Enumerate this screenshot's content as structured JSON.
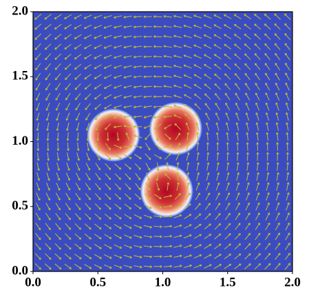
{
  "chart_data": {
    "type": "quiver",
    "xlim": [
      0,
      2
    ],
    "ylim": [
      0,
      2
    ],
    "xticks": [
      {
        "value": 0,
        "label": "0.0"
      },
      {
        "value": 0.5,
        "label": "0.5"
      },
      {
        "value": 1,
        "label": "1.0"
      },
      {
        "value": 1.5,
        "label": "1.5"
      },
      {
        "value": 2,
        "label": "2.0"
      }
    ],
    "yticks": [
      {
        "value": 0,
        "label": "0.0"
      },
      {
        "value": 0.5,
        "label": "0.5"
      },
      {
        "value": 1,
        "label": "1.0"
      },
      {
        "value": 1.5,
        "label": "1.5"
      },
      {
        "value": 2,
        "label": "2.0"
      }
    ],
    "background": "#3b4cc0",
    "arrow_color": "#b9b935",
    "vortices": [
      {
        "x": 0.62,
        "y": 1.05,
        "r": 0.16
      },
      {
        "x": 1.1,
        "y": 1.1,
        "r": 0.16
      },
      {
        "x": 1.03,
        "y": 0.62,
        "r": 0.16
      }
    ]
  }
}
